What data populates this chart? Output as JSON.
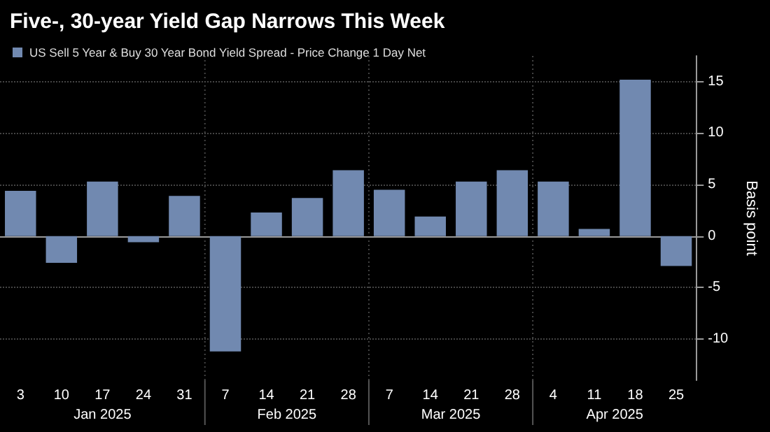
{
  "chart_data": {
    "type": "bar",
    "title": "Five-, 30-year Yield Gap Narrows This Week",
    "ylabel": "Basis point",
    "categories": [
      "3",
      "10",
      "17",
      "24",
      "31",
      "7",
      "14",
      "21",
      "28",
      "7",
      "14",
      "21",
      "28",
      "4",
      "11",
      "18",
      "25"
    ],
    "series": [
      {
        "name": "US Sell 5 Year & Buy 30 Year Bond Yield Spread - Price Change 1 Day Net",
        "color": "#7189b0",
        "values": [
          4.4,
          -2.6,
          5.3,
          -0.6,
          3.9,
          -11.2,
          2.3,
          3.7,
          6.4,
          4.5,
          1.9,
          5.3,
          6.4,
          5.3,
          0.7,
          15.2,
          -2.9
        ]
      }
    ],
    "annotations": [
      "Jan 2025",
      "Feb 2025",
      "Mar 2025",
      "Apr 2025"
    ],
    "ylim": [
      -14,
      17.5
    ],
    "yticks": [
      -10,
      -5,
      0,
      5,
      10,
      15
    ],
    "grid": true,
    "legend": "top left"
  }
}
